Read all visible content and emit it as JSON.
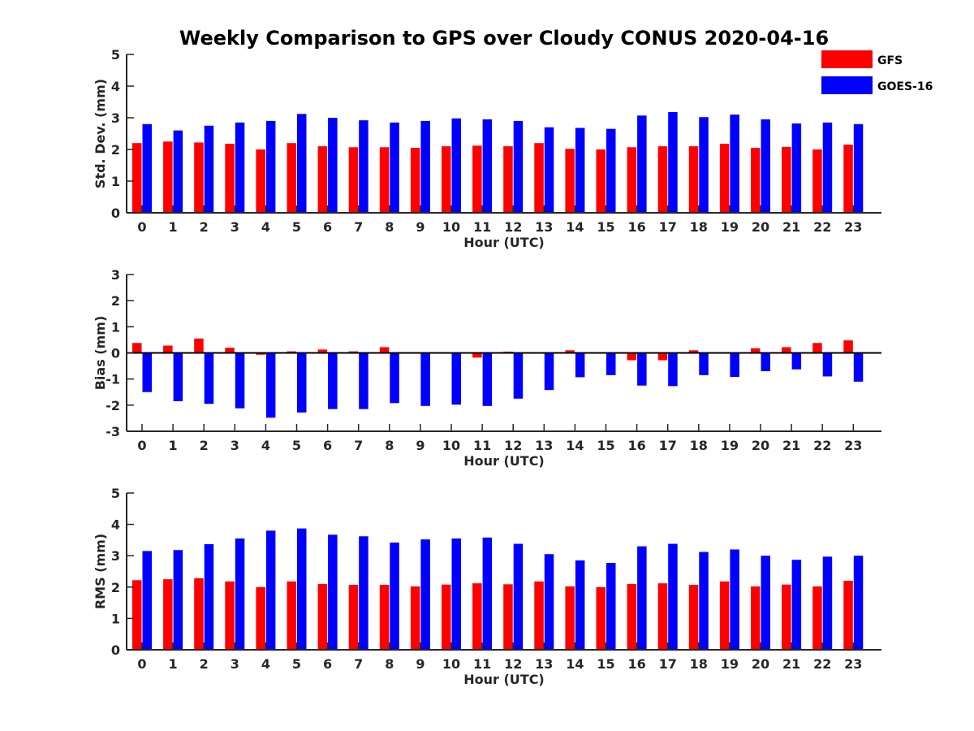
{
  "title": "Weekly Comparison to GPS over Cloudy CONUS 2020-04-16",
  "legend": [
    {
      "name": "GFS",
      "color": "#ff0000"
    },
    {
      "name": "GOES-16",
      "color": "#0000ff"
    }
  ],
  "chart_data": [
    {
      "type": "bar",
      "xlabel": "Hour (UTC)",
      "ylabel": "Std. Dev. (mm)",
      "ylim": [
        0,
        5
      ],
      "yticks": [
        0,
        1,
        2,
        3,
        4,
        5
      ],
      "categories": [
        "0",
        "1",
        "2",
        "3",
        "4",
        "5",
        "6",
        "7",
        "8",
        "9",
        "10",
        "11",
        "12",
        "13",
        "14",
        "15",
        "16",
        "17",
        "18",
        "19",
        "20",
        "21",
        "22",
        "23"
      ],
      "series": [
        {
          "name": "GFS",
          "color": "#ff0000",
          "values": [
            2.2,
            2.25,
            2.22,
            2.18,
            2.0,
            2.2,
            2.1,
            2.07,
            2.07,
            2.05,
            2.1,
            2.12,
            2.1,
            2.2,
            2.02,
            2.0,
            2.07,
            2.1,
            2.1,
            2.18,
            2.05,
            2.08,
            2.0,
            2.15
          ]
        },
        {
          "name": "GOES-16",
          "color": "#0000ff",
          "values": [
            2.8,
            2.6,
            2.75,
            2.85,
            2.9,
            3.12,
            3.0,
            2.92,
            2.85,
            2.9,
            2.98,
            2.95,
            2.9,
            2.7,
            2.68,
            2.65,
            3.07,
            3.18,
            3.02,
            3.1,
            2.95,
            2.82,
            2.85,
            2.8
          ]
        }
      ]
    },
    {
      "type": "bar",
      "xlabel": "Hour (UTC)",
      "ylabel": "Bias (mm)",
      "ylim": [
        -3,
        3
      ],
      "yticks": [
        -3,
        -2,
        -1,
        0,
        1,
        2,
        3
      ],
      "categories": [
        "0",
        "1",
        "2",
        "3",
        "4",
        "5",
        "6",
        "7",
        "8",
        "9",
        "10",
        "11",
        "12",
        "13",
        "14",
        "15",
        "16",
        "17",
        "18",
        "19",
        "20",
        "21",
        "22",
        "23"
      ],
      "series": [
        {
          "name": "GFS",
          "color": "#ff0000",
          "values": [
            0.38,
            0.28,
            0.55,
            0.2,
            -0.07,
            0.06,
            0.13,
            0.06,
            0.22,
            0.03,
            0.0,
            -0.18,
            0.05,
            0.0,
            0.1,
            0.0,
            -0.28,
            -0.28,
            0.1,
            0.0,
            0.18,
            0.22,
            0.38,
            0.48
          ]
        },
        {
          "name": "GOES-16",
          "color": "#0000ff",
          "values": [
            -1.5,
            -1.85,
            -1.95,
            -2.12,
            -2.48,
            -2.28,
            -2.15,
            -2.15,
            -1.92,
            -2.03,
            -1.98,
            -2.03,
            -1.75,
            -1.42,
            -0.93,
            -0.85,
            -1.25,
            -1.27,
            -0.85,
            -0.92,
            -0.7,
            -0.63,
            -0.9,
            -1.1
          ]
        }
      ]
    },
    {
      "type": "bar",
      "xlabel": "Hour (UTC)",
      "ylabel": "RMS (mm)",
      "ylim": [
        0,
        5
      ],
      "yticks": [
        0,
        1,
        2,
        3,
        4,
        5
      ],
      "categories": [
        "0",
        "1",
        "2",
        "3",
        "4",
        "5",
        "6",
        "7",
        "8",
        "9",
        "10",
        "11",
        "12",
        "13",
        "14",
        "15",
        "16",
        "17",
        "18",
        "19",
        "20",
        "21",
        "22",
        "23"
      ],
      "series": [
        {
          "name": "GFS",
          "color": "#ff0000",
          "values": [
            2.22,
            2.25,
            2.28,
            2.18,
            2.0,
            2.18,
            2.1,
            2.07,
            2.07,
            2.02,
            2.08,
            2.12,
            2.09,
            2.18,
            2.02,
            2.0,
            2.1,
            2.12,
            2.07,
            2.18,
            2.02,
            2.08,
            2.02,
            2.2
          ]
        },
        {
          "name": "GOES-16",
          "color": "#0000ff",
          "values": [
            3.15,
            3.18,
            3.37,
            3.55,
            3.8,
            3.87,
            3.67,
            3.62,
            3.42,
            3.52,
            3.55,
            3.58,
            3.38,
            3.05,
            2.85,
            2.77,
            3.3,
            3.38,
            3.12,
            3.2,
            3.0,
            2.87,
            2.97,
            3.0
          ]
        }
      ]
    }
  ]
}
